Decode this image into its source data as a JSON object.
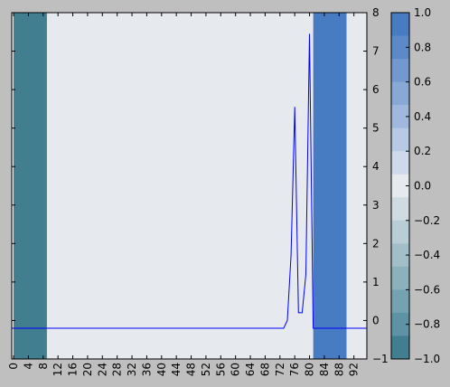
{
  "chart_data": {
    "type": "line",
    "title": "",
    "xlabel": "",
    "ylabel": "",
    "xlim": [
      -0.5,
      95.5
    ],
    "ylim": [
      -1,
      8
    ],
    "x_ticks": [
      0,
      4,
      8,
      12,
      16,
      20,
      24,
      28,
      32,
      36,
      40,
      44,
      48,
      52,
      56,
      60,
      64,
      68,
      72,
      76,
      80,
      84,
      88,
      92
    ],
    "y_ticks": [
      -1,
      0,
      1,
      2,
      3,
      4,
      5,
      6,
      7,
      8
    ],
    "grid": false,
    "background_color": "#e6e9ee",
    "series": [
      {
        "name": "",
        "color": "#0000ff",
        "x": [
          -0.5,
          73,
          74,
          75,
          76,
          77,
          78,
          79,
          80,
          81,
          95.5
        ],
        "y": [
          -0.2,
          -0.2,
          0.0,
          1.7,
          5.55,
          0.2,
          0.2,
          1.2,
          7.45,
          -0.2,
          -0.2
        ]
      }
    ],
    "shaded_regions": [
      {
        "x_start": 0,
        "x_end": 9,
        "value": -1.0,
        "color": "#417e90"
      },
      {
        "x_start": 81,
        "x_end": 90,
        "value": 1.0,
        "color": "#477bc2"
      }
    ],
    "colorbar": {
      "ticks": [
        "1.0",
        "0.8",
        "0.6",
        "0.4",
        "0.2",
        "0.0",
        "−0.2",
        "−0.4",
        "−0.6",
        "−0.8",
        "−1.0"
      ],
      "levels": [
        "#477bc2",
        "#5c89c8",
        "#7298cf",
        "#88a8d6",
        "#a0b8de",
        "#b7c9e5",
        "#cfd9ec",
        "#e6e9ee",
        "#cfdbe1",
        "#b8cdd5",
        "#a2bfc9",
        "#8bb1bd",
        "#74a2b1",
        "#5d93a4",
        "#417e90"
      ]
    }
  }
}
